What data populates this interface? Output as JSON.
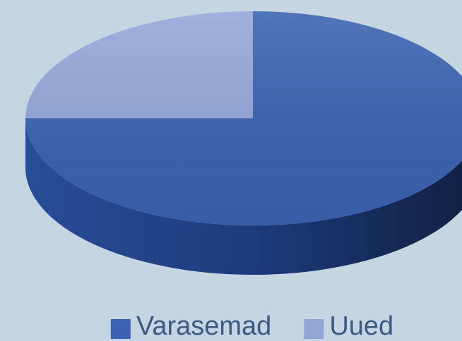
{
  "chart_data": {
    "type": "pie",
    "categories": [
      "Varasemad",
      "Uued"
    ],
    "values": [
      75,
      25
    ],
    "colors": [
      "#3a62b0",
      "#93a6d8"
    ],
    "legend": "bottom"
  }
}
